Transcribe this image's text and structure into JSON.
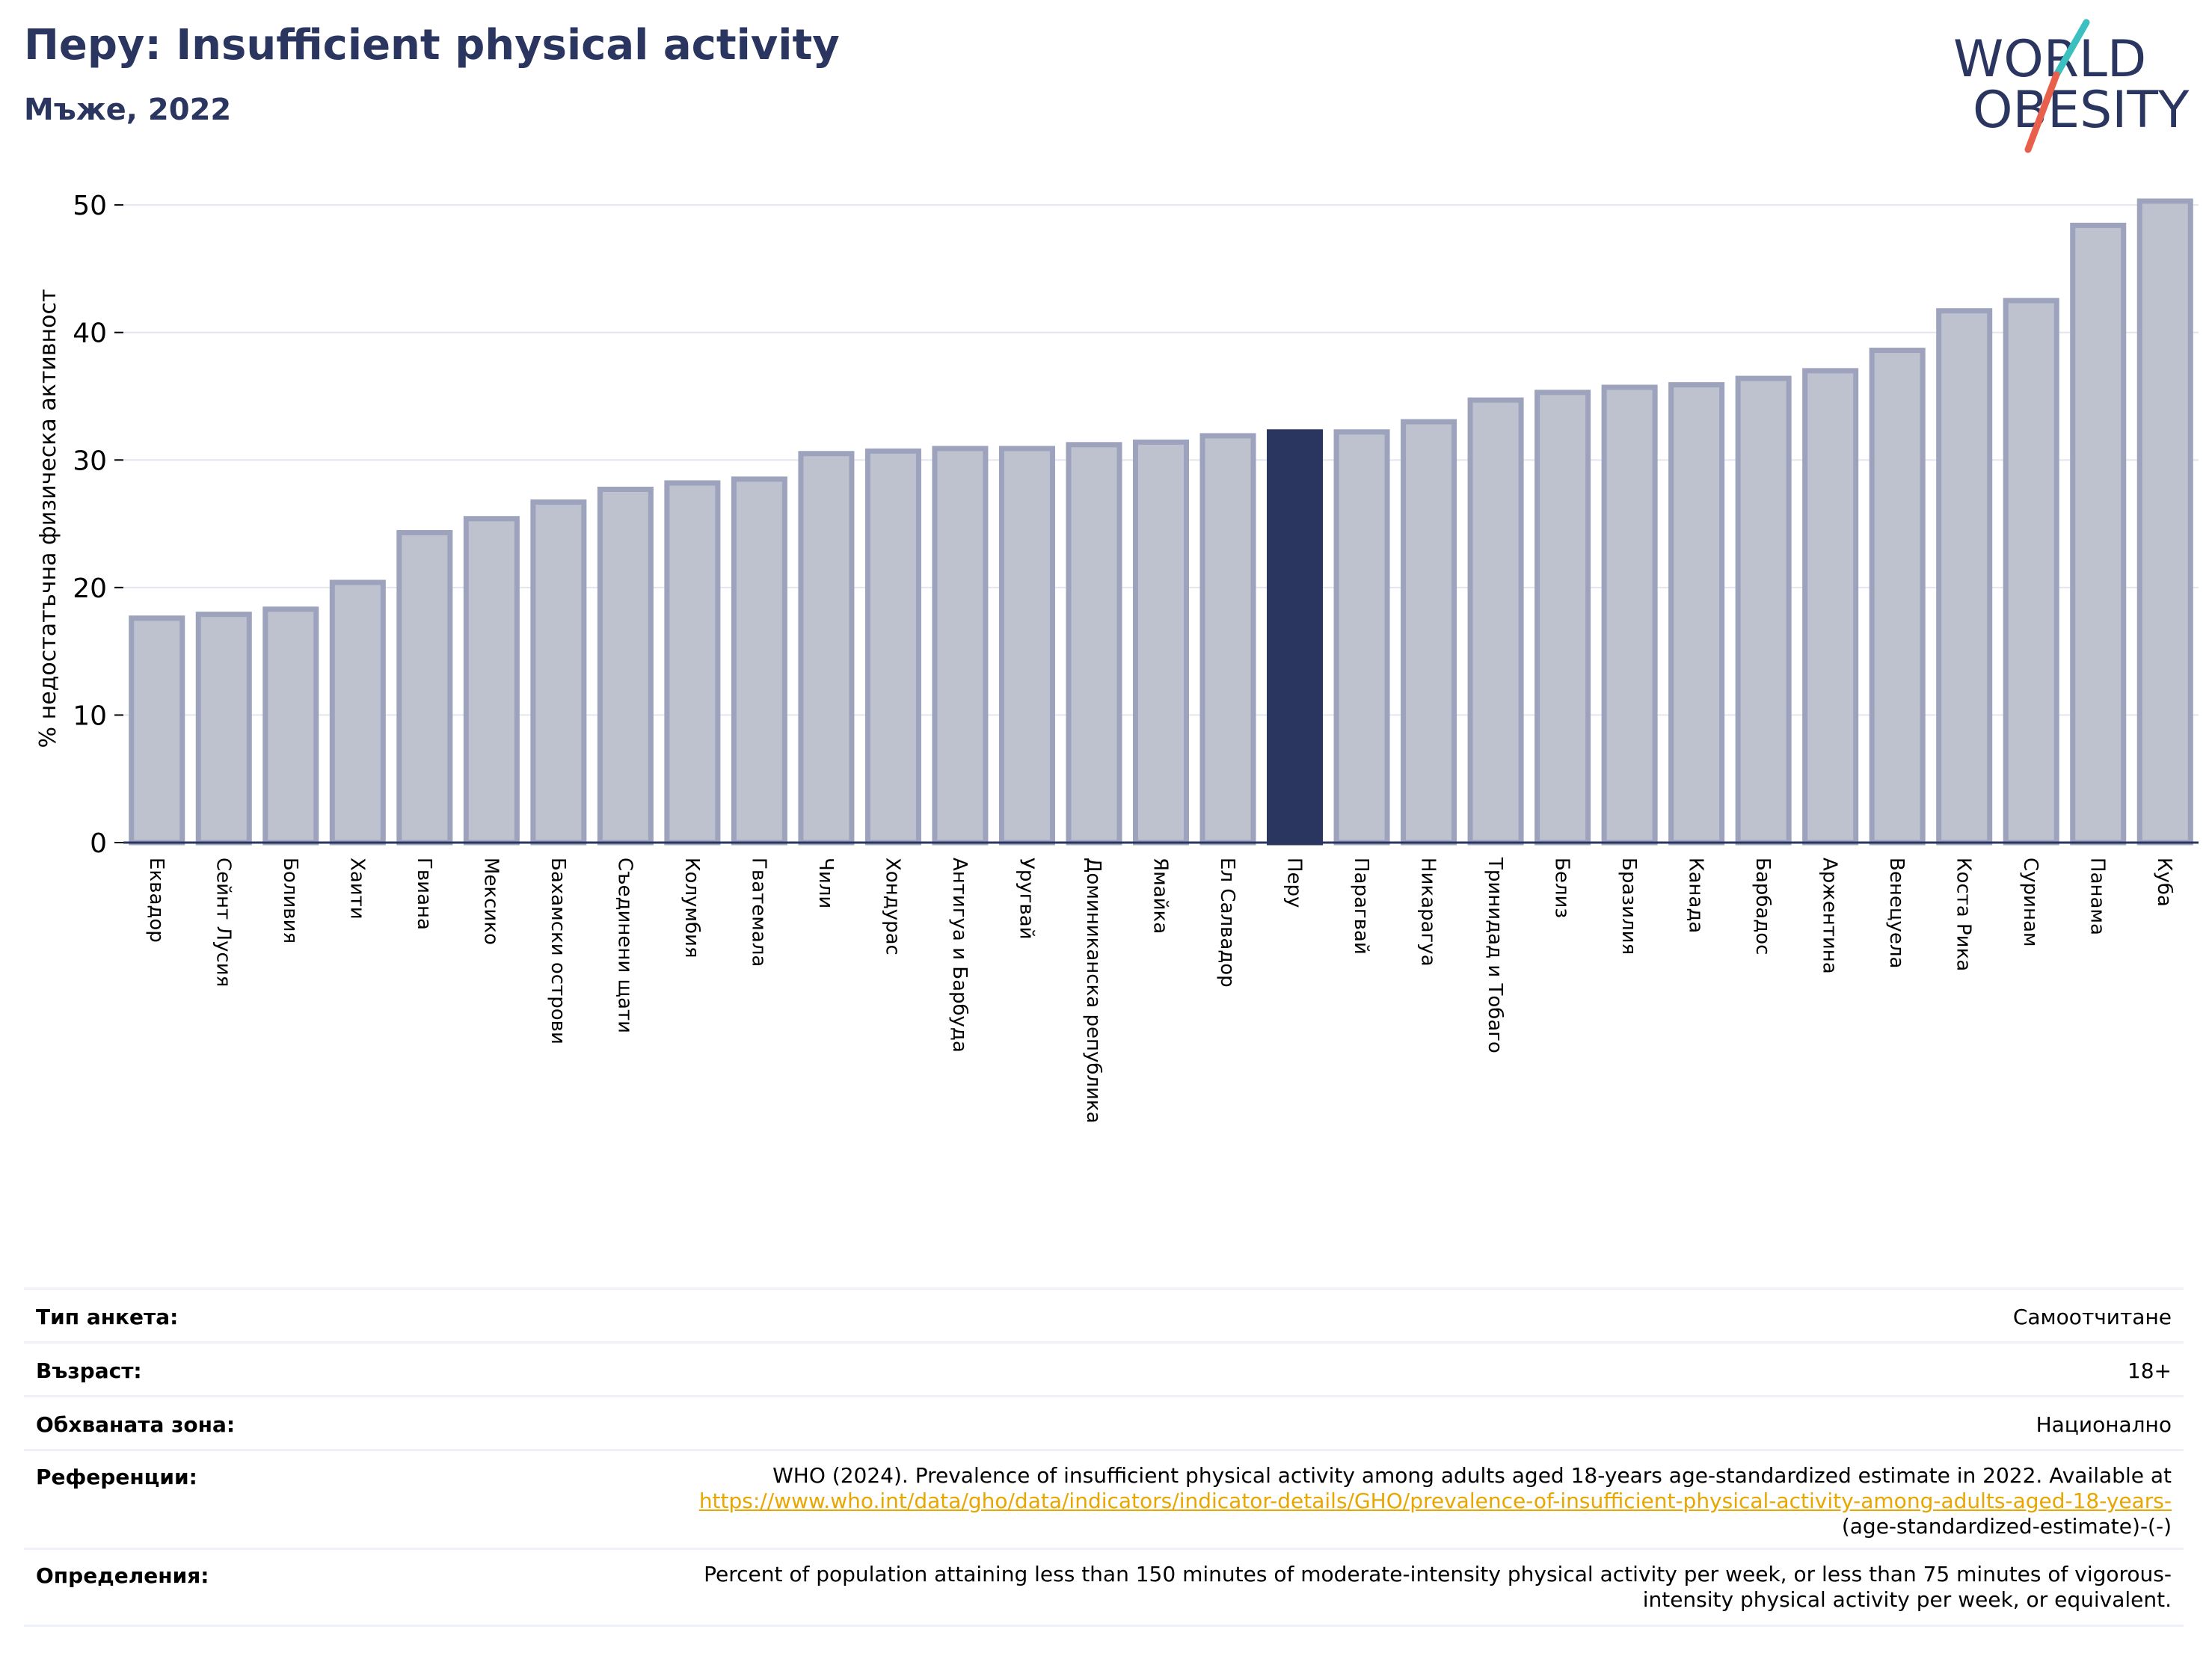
{
  "header": {
    "title": "Перу: Insufficient physical activity",
    "subtitle": "Мъже, 2022",
    "logo_line1": "WORLD",
    "logo_line2": "OBESITY"
  },
  "colors": {
    "highlight": "#2a3560",
    "bar_fill": "#bec1ce",
    "bar_stroke": "#9ea3bd",
    "title": "#2a3560",
    "logo_teal": "#3bbfbf",
    "logo_red": "#e8604c",
    "link": "#e8a600"
  },
  "chart_data": {
    "type": "bar",
    "title": "",
    "xlabel": "",
    "ylabel": "% недостатъчна физическа активност",
    "ylim": [
      0,
      52
    ],
    "yticks": [
      0,
      10,
      20,
      30,
      40,
      50
    ],
    "grid": true,
    "highlight": "Перу",
    "categories": [
      "Еквадор",
      "Сейнт Лусия",
      "Боливия",
      "Хаити",
      "Гвиана",
      "Мексико",
      "Бахамски острови",
      "Съединени щати",
      "Колумбия",
      "Гватемала",
      "Чили",
      "Хондурас",
      "Антигуа и Барбуда",
      "Уругвай",
      "Доминиканска република",
      "Ямайка",
      "Ел Салвадор",
      "Перу",
      "Парагвай",
      "Никарагуа",
      "Тринидад и Тобаго",
      "Белиз",
      "Бразилия",
      "Канада",
      "Барбадос",
      "Аржентина",
      "Венецуела",
      "Коста Рика",
      "Суринам",
      "Панама",
      "Куба"
    ],
    "values": [
      17.6,
      17.9,
      18.3,
      20.4,
      24.3,
      25.4,
      26.7,
      27.7,
      28.2,
      28.5,
      30.5,
      30.7,
      30.9,
      30.9,
      31.2,
      31.4,
      31.9,
      32.2,
      32.2,
      33.0,
      34.7,
      35.3,
      35.7,
      35.9,
      36.4,
      37.0,
      38.6,
      41.7,
      42.5,
      48.4,
      50.3
    ]
  },
  "info": {
    "survey_type": {
      "label": "Тип анкета:",
      "value": "Самоотчитане"
    },
    "age": {
      "label": "Възраст:",
      "value": "18+"
    },
    "coverage": {
      "label": "Обхваната зона:",
      "value": "Национално"
    },
    "references": {
      "label": "Референции:",
      "text": "WHO (2024). Prevalence of insufficient physical activity among adults aged 18-years age-standardized estimate in 2022. Available at",
      "link": "https://www.who.int/data/gho/data/indicators/indicator-details/GHO/prevalence-of-insufficient-physical-activity-among-adults-aged-18-years-",
      "link_tail": "(age-standardized-estimate)-(-)"
    },
    "definitions": {
      "label": "Определения:",
      "line1": "Percent of population attaining less than 150 minutes of moderate-intensity physical activity per week, or less than 75 minutes of vigorous-",
      "line2": "intensity physical activity per week, or equivalent."
    }
  }
}
